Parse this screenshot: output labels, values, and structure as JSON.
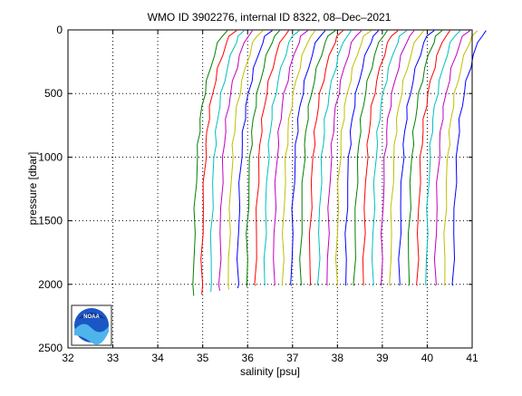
{
  "chart_data": {
    "type": "line",
    "title": "WMO ID 3902276, internal ID 8322, 08–Dec–2021",
    "xlabel": "salinity [psu]",
    "ylabel": "pressure [dbar]",
    "xlim": [
      32,
      41
    ],
    "ylim": [
      0,
      2500
    ],
    "y_reversed": true,
    "grid": true,
    "x_ticks": [
      "32",
      "33",
      "34",
      "35",
      "36",
      "37",
      "38",
      "39",
      "40",
      "41"
    ],
    "y_ticks": [
      "0",
      "500",
      "1000",
      "1500",
      "2000",
      "2500"
    ],
    "logo": "NOAA",
    "series_colors": [
      "#008000",
      "#ff0000",
      "#00bfbf",
      "#bf00bf",
      "#bfbf00",
      "#0000ff"
    ],
    "profile_shape": {
      "pressure": [
        5,
        50,
        100,
        200,
        300,
        400,
        500,
        600,
        700,
        800,
        900,
        1000,
        1200,
        1400,
        1600,
        1800,
        2000
      ],
      "offset_from_deep": [
        0.75,
        0.62,
        0.55,
        0.45,
        0.37,
        0.3,
        0.24,
        0.19,
        0.15,
        0.12,
        0.1,
        0.08,
        0.05,
        0.03,
        0.015,
        0.005,
        0.0
      ]
    },
    "series": [
      {
        "deep_salinity": 34.8,
        "end_pressure": 2090
      },
      {
        "deep_salinity": 34.98,
        "end_pressure": 2080
      },
      {
        "deep_salinity": 35.18,
        "end_pressure": 2060
      },
      {
        "deep_salinity": 35.38,
        "end_pressure": 2050
      },
      {
        "deep_salinity": 35.58,
        "end_pressure": 2040
      },
      {
        "deep_salinity": 35.78,
        "end_pressure": 2030
      },
      {
        "deep_salinity": 35.98,
        "end_pressure": 2020
      },
      {
        "deep_salinity": 36.18,
        "end_pressure": 2010
      },
      {
        "deep_salinity": 36.38,
        "end_pressure": 2010
      },
      {
        "deep_salinity": 36.58,
        "end_pressure": 2010
      },
      {
        "deep_salinity": 36.78,
        "end_pressure": 2010
      },
      {
        "deep_salinity": 36.98,
        "end_pressure": 2010
      },
      {
        "deep_salinity": 37.18,
        "end_pressure": 2010
      },
      {
        "deep_salinity": 37.38,
        "end_pressure": 2010
      },
      {
        "deep_salinity": 37.58,
        "end_pressure": 2010
      },
      {
        "deep_salinity": 37.78,
        "end_pressure": 2010
      },
      {
        "deep_salinity": 37.98,
        "end_pressure": 2010
      },
      {
        "deep_salinity": 38.18,
        "end_pressure": 2010
      },
      {
        "deep_salinity": 38.38,
        "end_pressure": 2010
      },
      {
        "deep_salinity": 38.58,
        "end_pressure": 2010
      },
      {
        "deep_salinity": 38.78,
        "end_pressure": 2010
      },
      {
        "deep_salinity": 38.98,
        "end_pressure": 2010
      },
      {
        "deep_salinity": 39.18,
        "end_pressure": 2010
      },
      {
        "deep_salinity": 39.38,
        "end_pressure": 2010
      },
      {
        "deep_salinity": 39.58,
        "end_pressure": 2010
      },
      {
        "deep_salinity": 39.78,
        "end_pressure": 2010
      },
      {
        "deep_salinity": 39.98,
        "end_pressure": 2010
      },
      {
        "deep_salinity": 40.18,
        "end_pressure": 2010
      },
      {
        "deep_salinity": 40.38,
        "end_pressure": 2010
      },
      {
        "deep_salinity": 40.58,
        "end_pressure": 2010
      }
    ]
  }
}
